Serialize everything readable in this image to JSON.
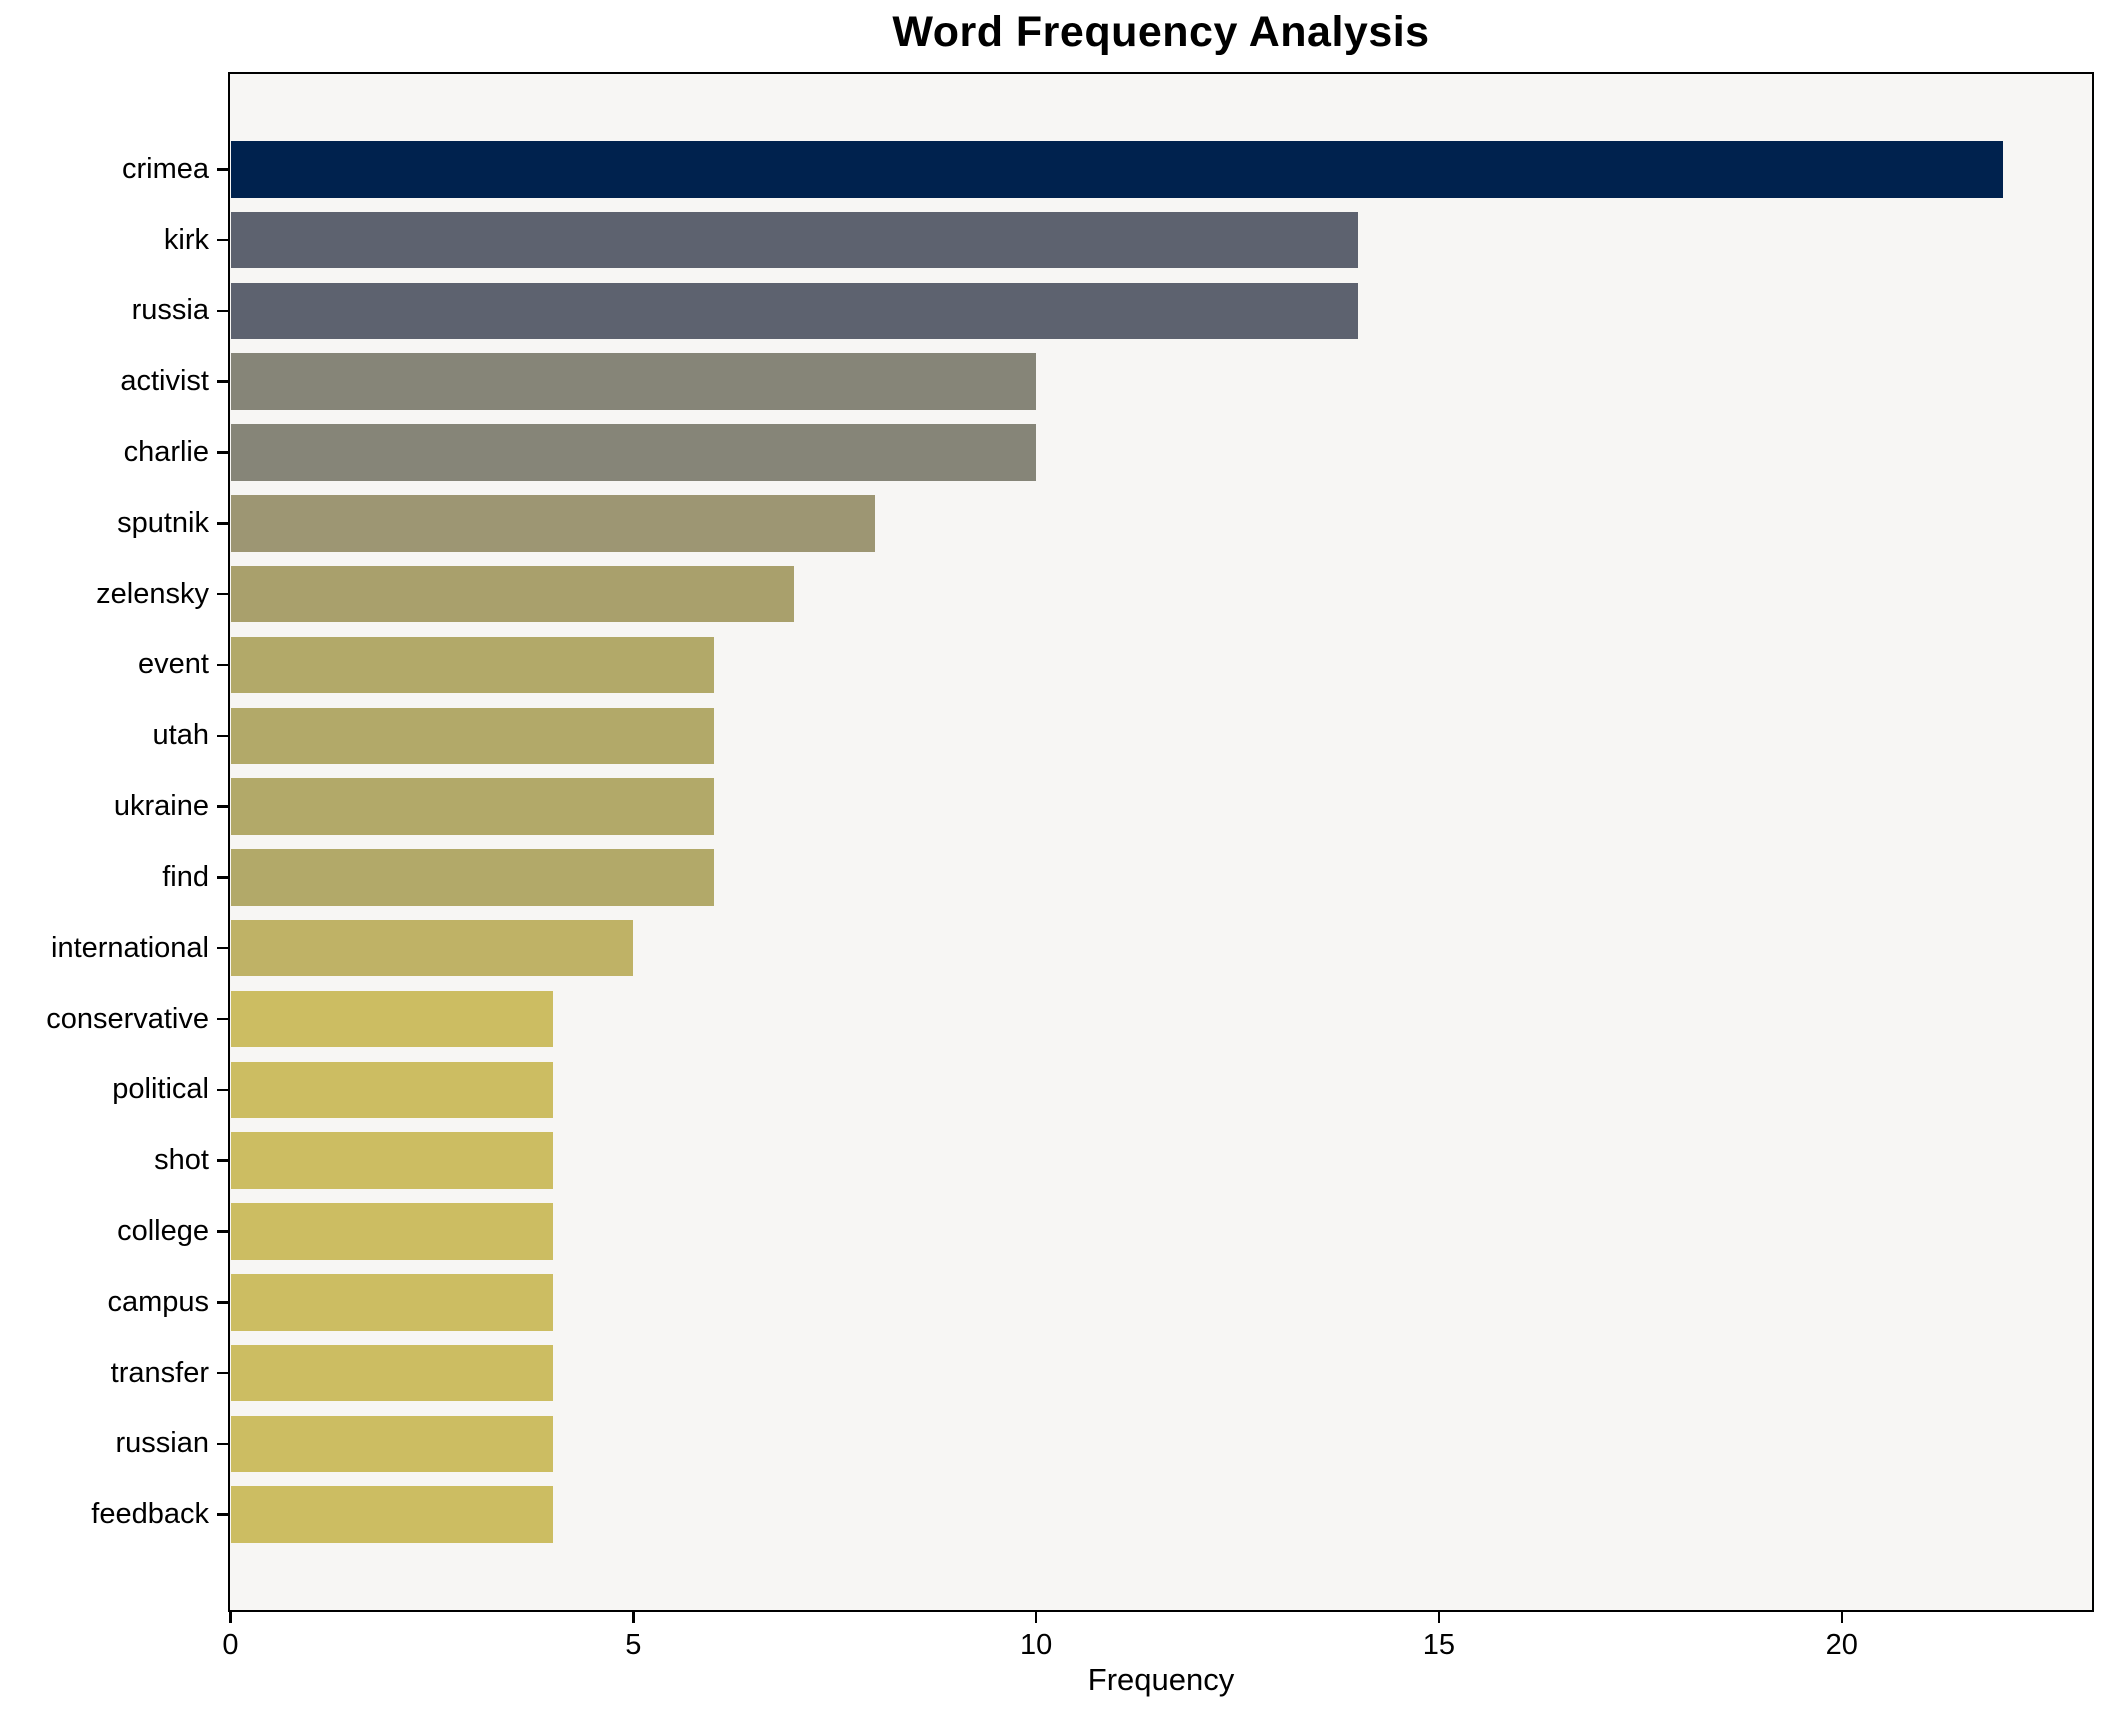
{
  "chart_data": {
    "type": "bar",
    "orientation": "horizontal",
    "title": "Word Frequency Analysis",
    "xlabel": "Frequency",
    "ylabel": "",
    "categories": [
      "crimea",
      "kirk",
      "russia",
      "activist",
      "charlie",
      "sputnik",
      "zelensky",
      "event",
      "utah",
      "ukraine",
      "find",
      "international",
      "conservative",
      "political",
      "shot",
      "college",
      "campus",
      "transfer",
      "russian",
      "feedback"
    ],
    "values": [
      22,
      14,
      14,
      10,
      10,
      8,
      7,
      6,
      6,
      6,
      6,
      5,
      4,
      4,
      4,
      4,
      4,
      4,
      4,
      4
    ],
    "bar_colors": [
      "#00224e",
      "#5d626f",
      "#5d626f",
      "#868578",
      "#868578",
      "#9d9673",
      "#a9a06c",
      "#b2a969",
      "#b2a969",
      "#b2a969",
      "#b2a969",
      "#bfb266",
      "#ccbd62",
      "#ccbd62",
      "#ccbd62",
      "#ccbd62",
      "#ccbd62",
      "#ccbd62",
      "#ccbd62",
      "#ccbd62"
    ],
    "xlim": [
      0,
      23.1
    ],
    "x_ticks": [
      0,
      5,
      10,
      15,
      20
    ],
    "grid": false,
    "legend": null,
    "colormap": "cividis",
    "plot_bg_color": "#f7f6f4",
    "figure_bg_color": "#ffffff",
    "spine_color": "#000000"
  }
}
